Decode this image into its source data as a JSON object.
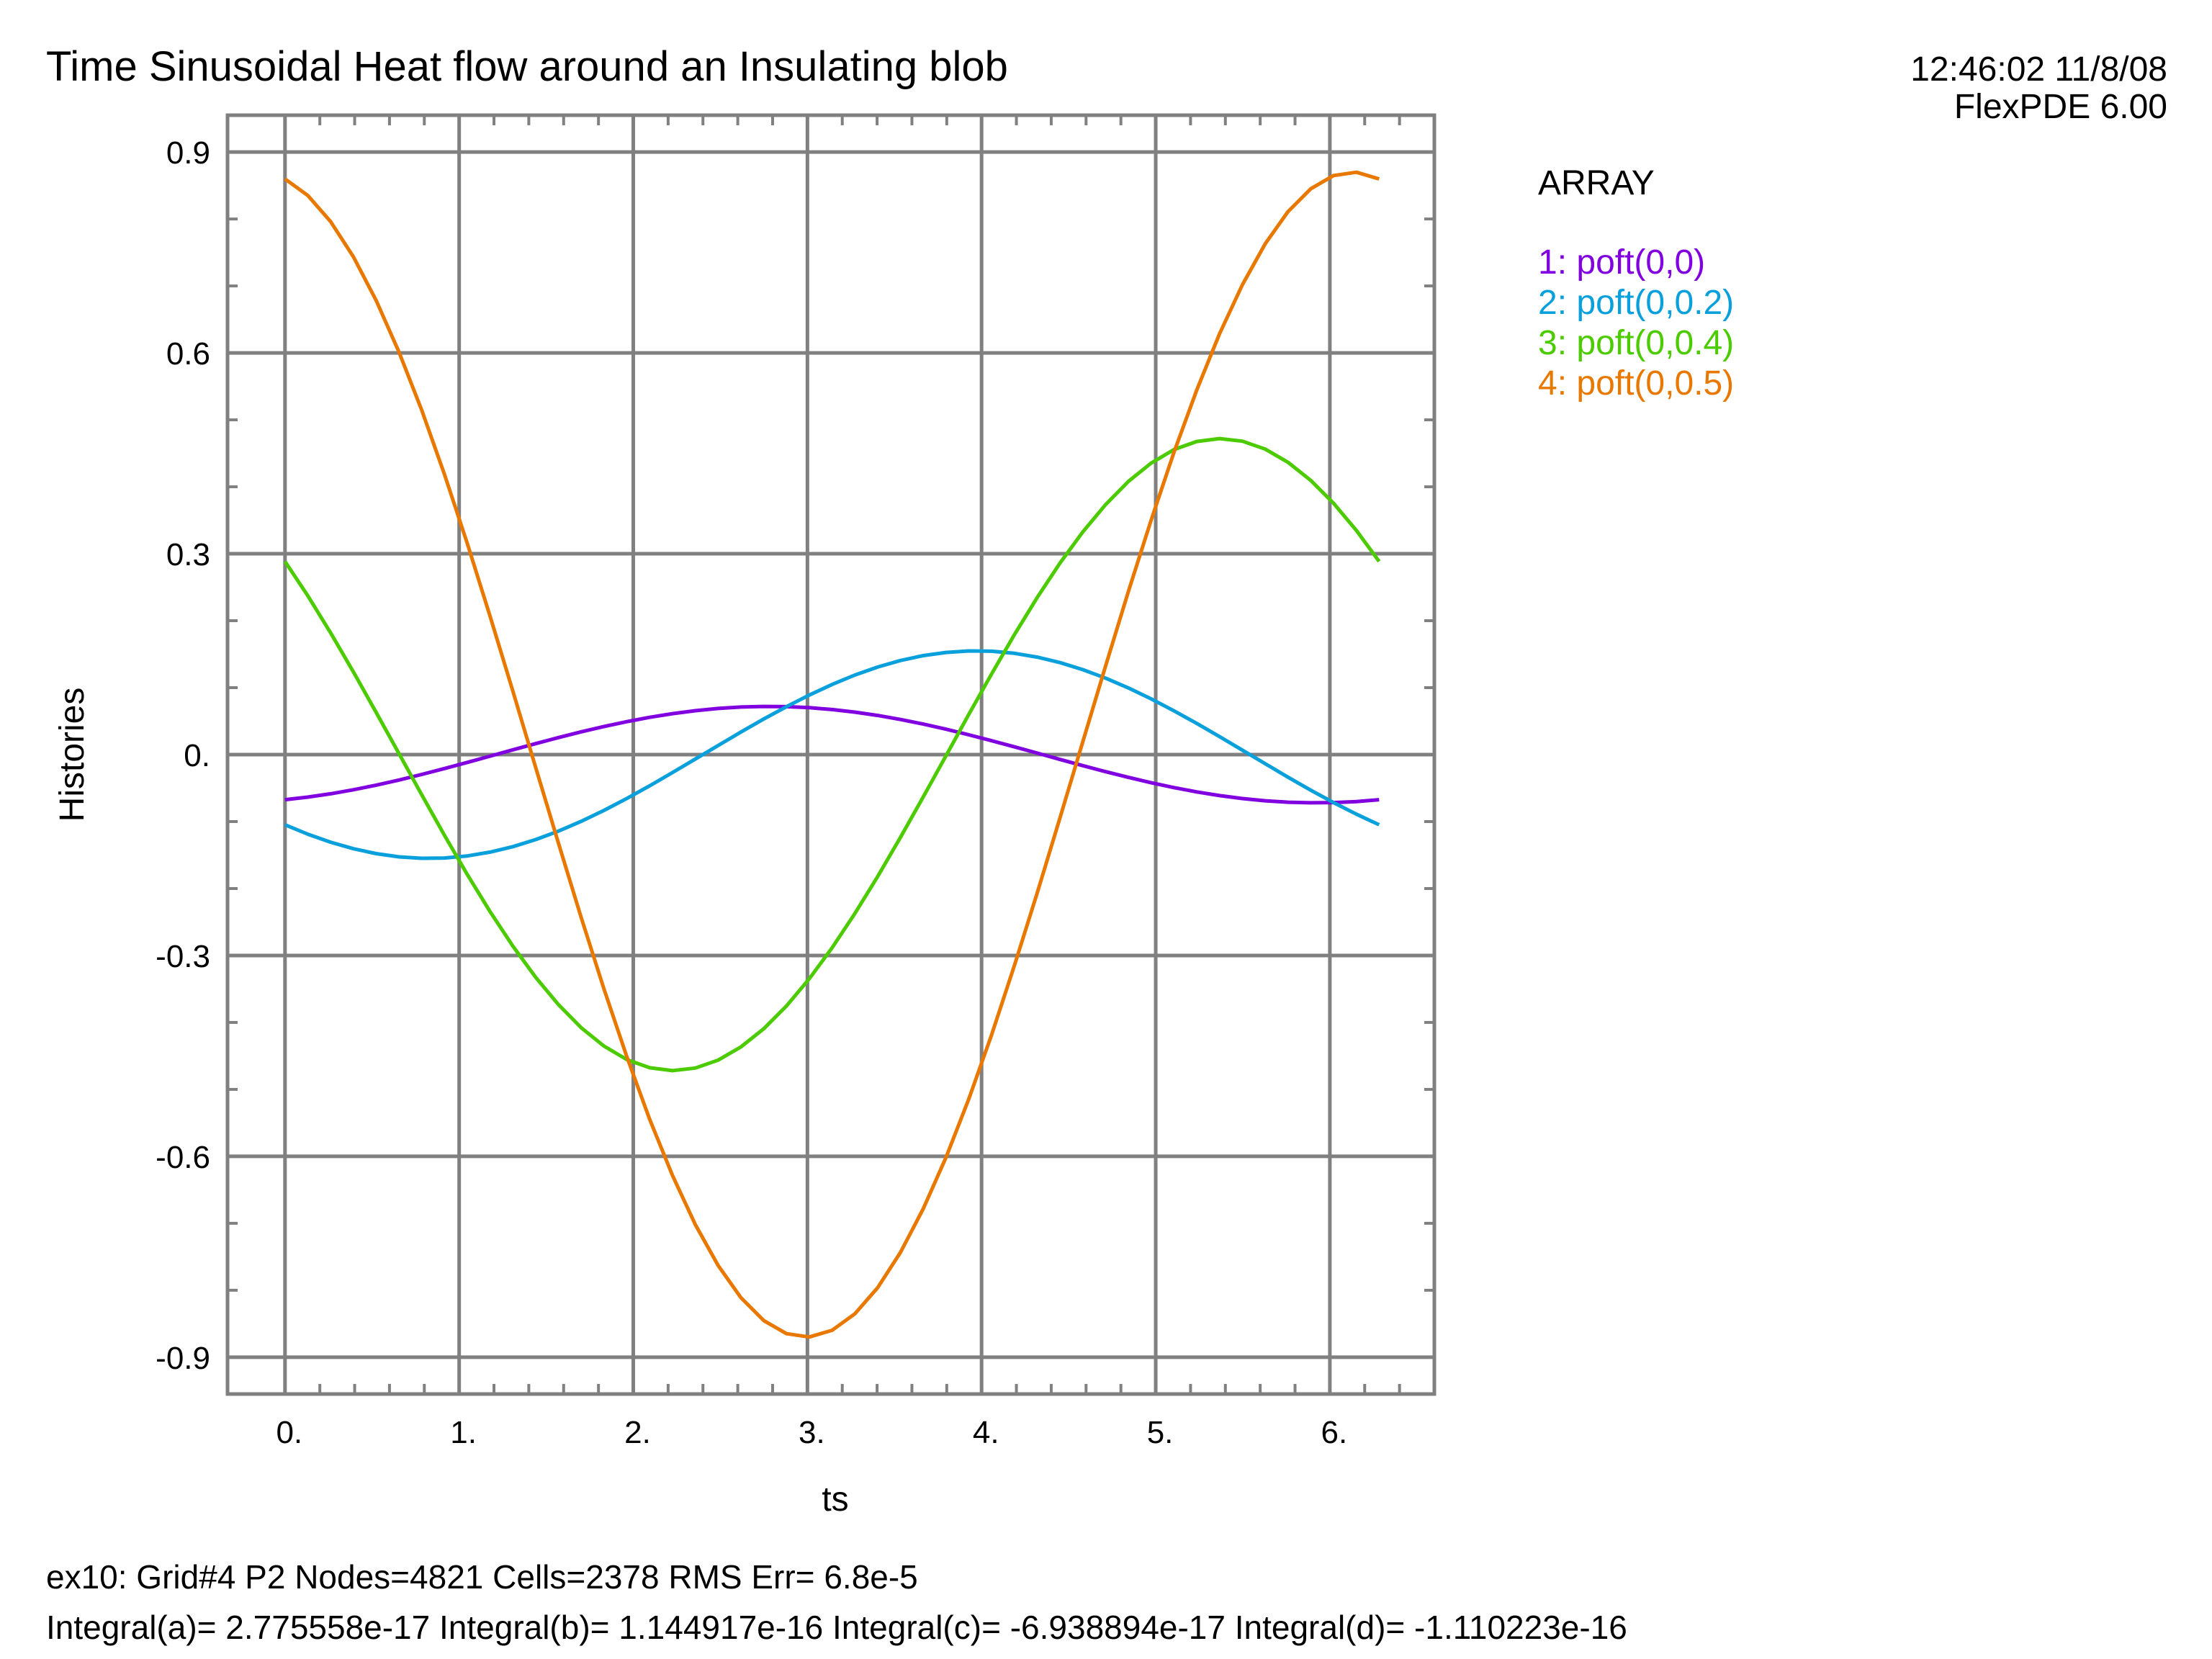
{
  "header": {
    "title": "Time Sinusoidal Heat flow around an Insulating blob",
    "timestamp": "12:46:02 11/8/08",
    "software": "FlexPDE 6.00"
  },
  "footer": {
    "line1": "ex10:  Grid#4  P2  Nodes=4821 Cells=2378 RMS Err= 6.8e-5",
    "line2": "Integral(a)=  2.775558e-17 Integral(b)=  1.144917e-16 Integral(c)= -6.938894e-17 Integral(d)= -1.110223e-16"
  },
  "chart_data": {
    "type": "line",
    "title": "Time Sinusoidal Heat flow around an Insulating blob",
    "xlabel": "ts",
    "ylabel": "Histories",
    "xlim": [
      -0.33,
      6.6
    ],
    "ylim": [
      -0.955,
      0.955
    ],
    "grid": true,
    "legend_position": "right",
    "legend_title": "ARRAY",
    "x_ticks": [
      0,
      1,
      2,
      3,
      4,
      5,
      6
    ],
    "x_tick_labels": [
      "0.",
      "1.",
      "2.",
      "3.",
      "4.",
      "5.",
      "6."
    ],
    "y_ticks": [
      -0.9,
      -0.6,
      -0.3,
      0,
      0.3,
      0.6,
      0.9
    ],
    "y_tick_labels": [
      "-0.9",
      "-0.6",
      "-0.3",
      "0.",
      "0.3",
      "0.6",
      "0.9"
    ],
    "series": [
      {
        "name": "1: poft(0,0)",
        "color": "#8000e0",
        "amplitude": 0.072,
        "phase_offset": -2.78,
        "x_start": 0,
        "x_end": 6.283
      },
      {
        "name": "2: poft(0,0.2)",
        "color": "#0aa0dc",
        "amplitude": 0.155,
        "phase_offset": -3.97,
        "x_start": 0,
        "x_end": 6.283
      },
      {
        "name": "3: poft(0,0.4)",
        "color": "#4ccc00",
        "amplitude": 0.472,
        "phase_offset": -5.37,
        "x_start": 0,
        "x_end": 6.283
      },
      {
        "name": "4: poft(0,0.5)",
        "color": "#e87800",
        "amplitude": 0.87,
        "phase_offset": -6.13,
        "x_start": 0,
        "x_end": 6.283
      }
    ]
  },
  "colors": {
    "grid": "#808080",
    "frame": "#808080",
    "text": "#000000"
  }
}
